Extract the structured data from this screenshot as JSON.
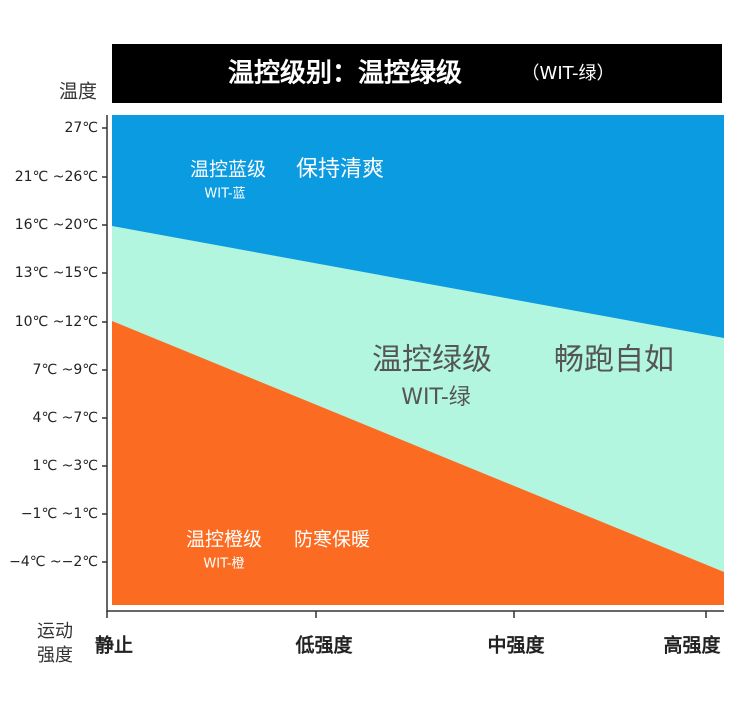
{
  "header": {
    "title": "温控级别：温控绿级",
    "subtitle": "（WIT-绿）"
  },
  "y_axis": {
    "title": "温度",
    "labels": [
      "27℃",
      "21℃ ~26℃",
      "16℃ ~20℃",
      "13℃ ~15℃",
      "10℃ ~12℃",
      "7℃ ~9℃",
      "4℃ ~7℃",
      "1℃ ~3℃",
      "−1℃ ~1℃",
      "−4℃ ~−2℃"
    ]
  },
  "x_axis": {
    "title": [
      "运动",
      "强度"
    ],
    "labels": [
      "静止",
      "低强度",
      "中强度",
      "高强度"
    ]
  },
  "zones": [
    {
      "label": "温控蓝级",
      "slogan": "保持清爽",
      "code": "WIT-蓝"
    },
    {
      "label": "温控绿级",
      "slogan": "畅跑自如",
      "code": "WIT-绿"
    },
    {
      "label": "温控橙级",
      "slogan": "防寒保暖",
      "code": "WIT-橙"
    }
  ]
}
